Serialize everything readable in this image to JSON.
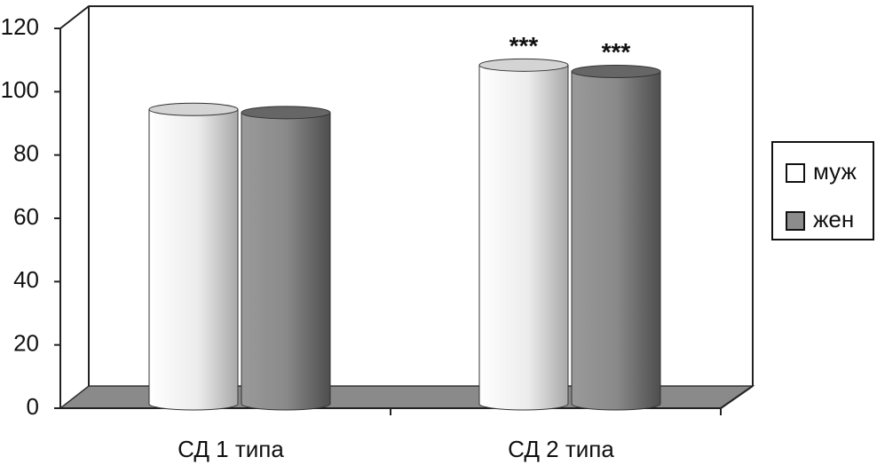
{
  "chart_data": {
    "type": "bar3d",
    "categories": [
      "СД 1 типа",
      "СД 2 типа"
    ],
    "series": [
      {
        "name": "муж",
        "color": "#d9d9d9",
        "values": [
          93,
          107
        ],
        "annotations": [
          null,
          "***"
        ]
      },
      {
        "name": "жен",
        "color": "#8c8c8c",
        "values": [
          92,
          105
        ],
        "annotations": [
          null,
          "***"
        ]
      }
    ],
    "ylim": [
      0,
      120
    ],
    "yticks": [
      0,
      20,
      40,
      60,
      80,
      100,
      120
    ],
    "legend": "right"
  }
}
